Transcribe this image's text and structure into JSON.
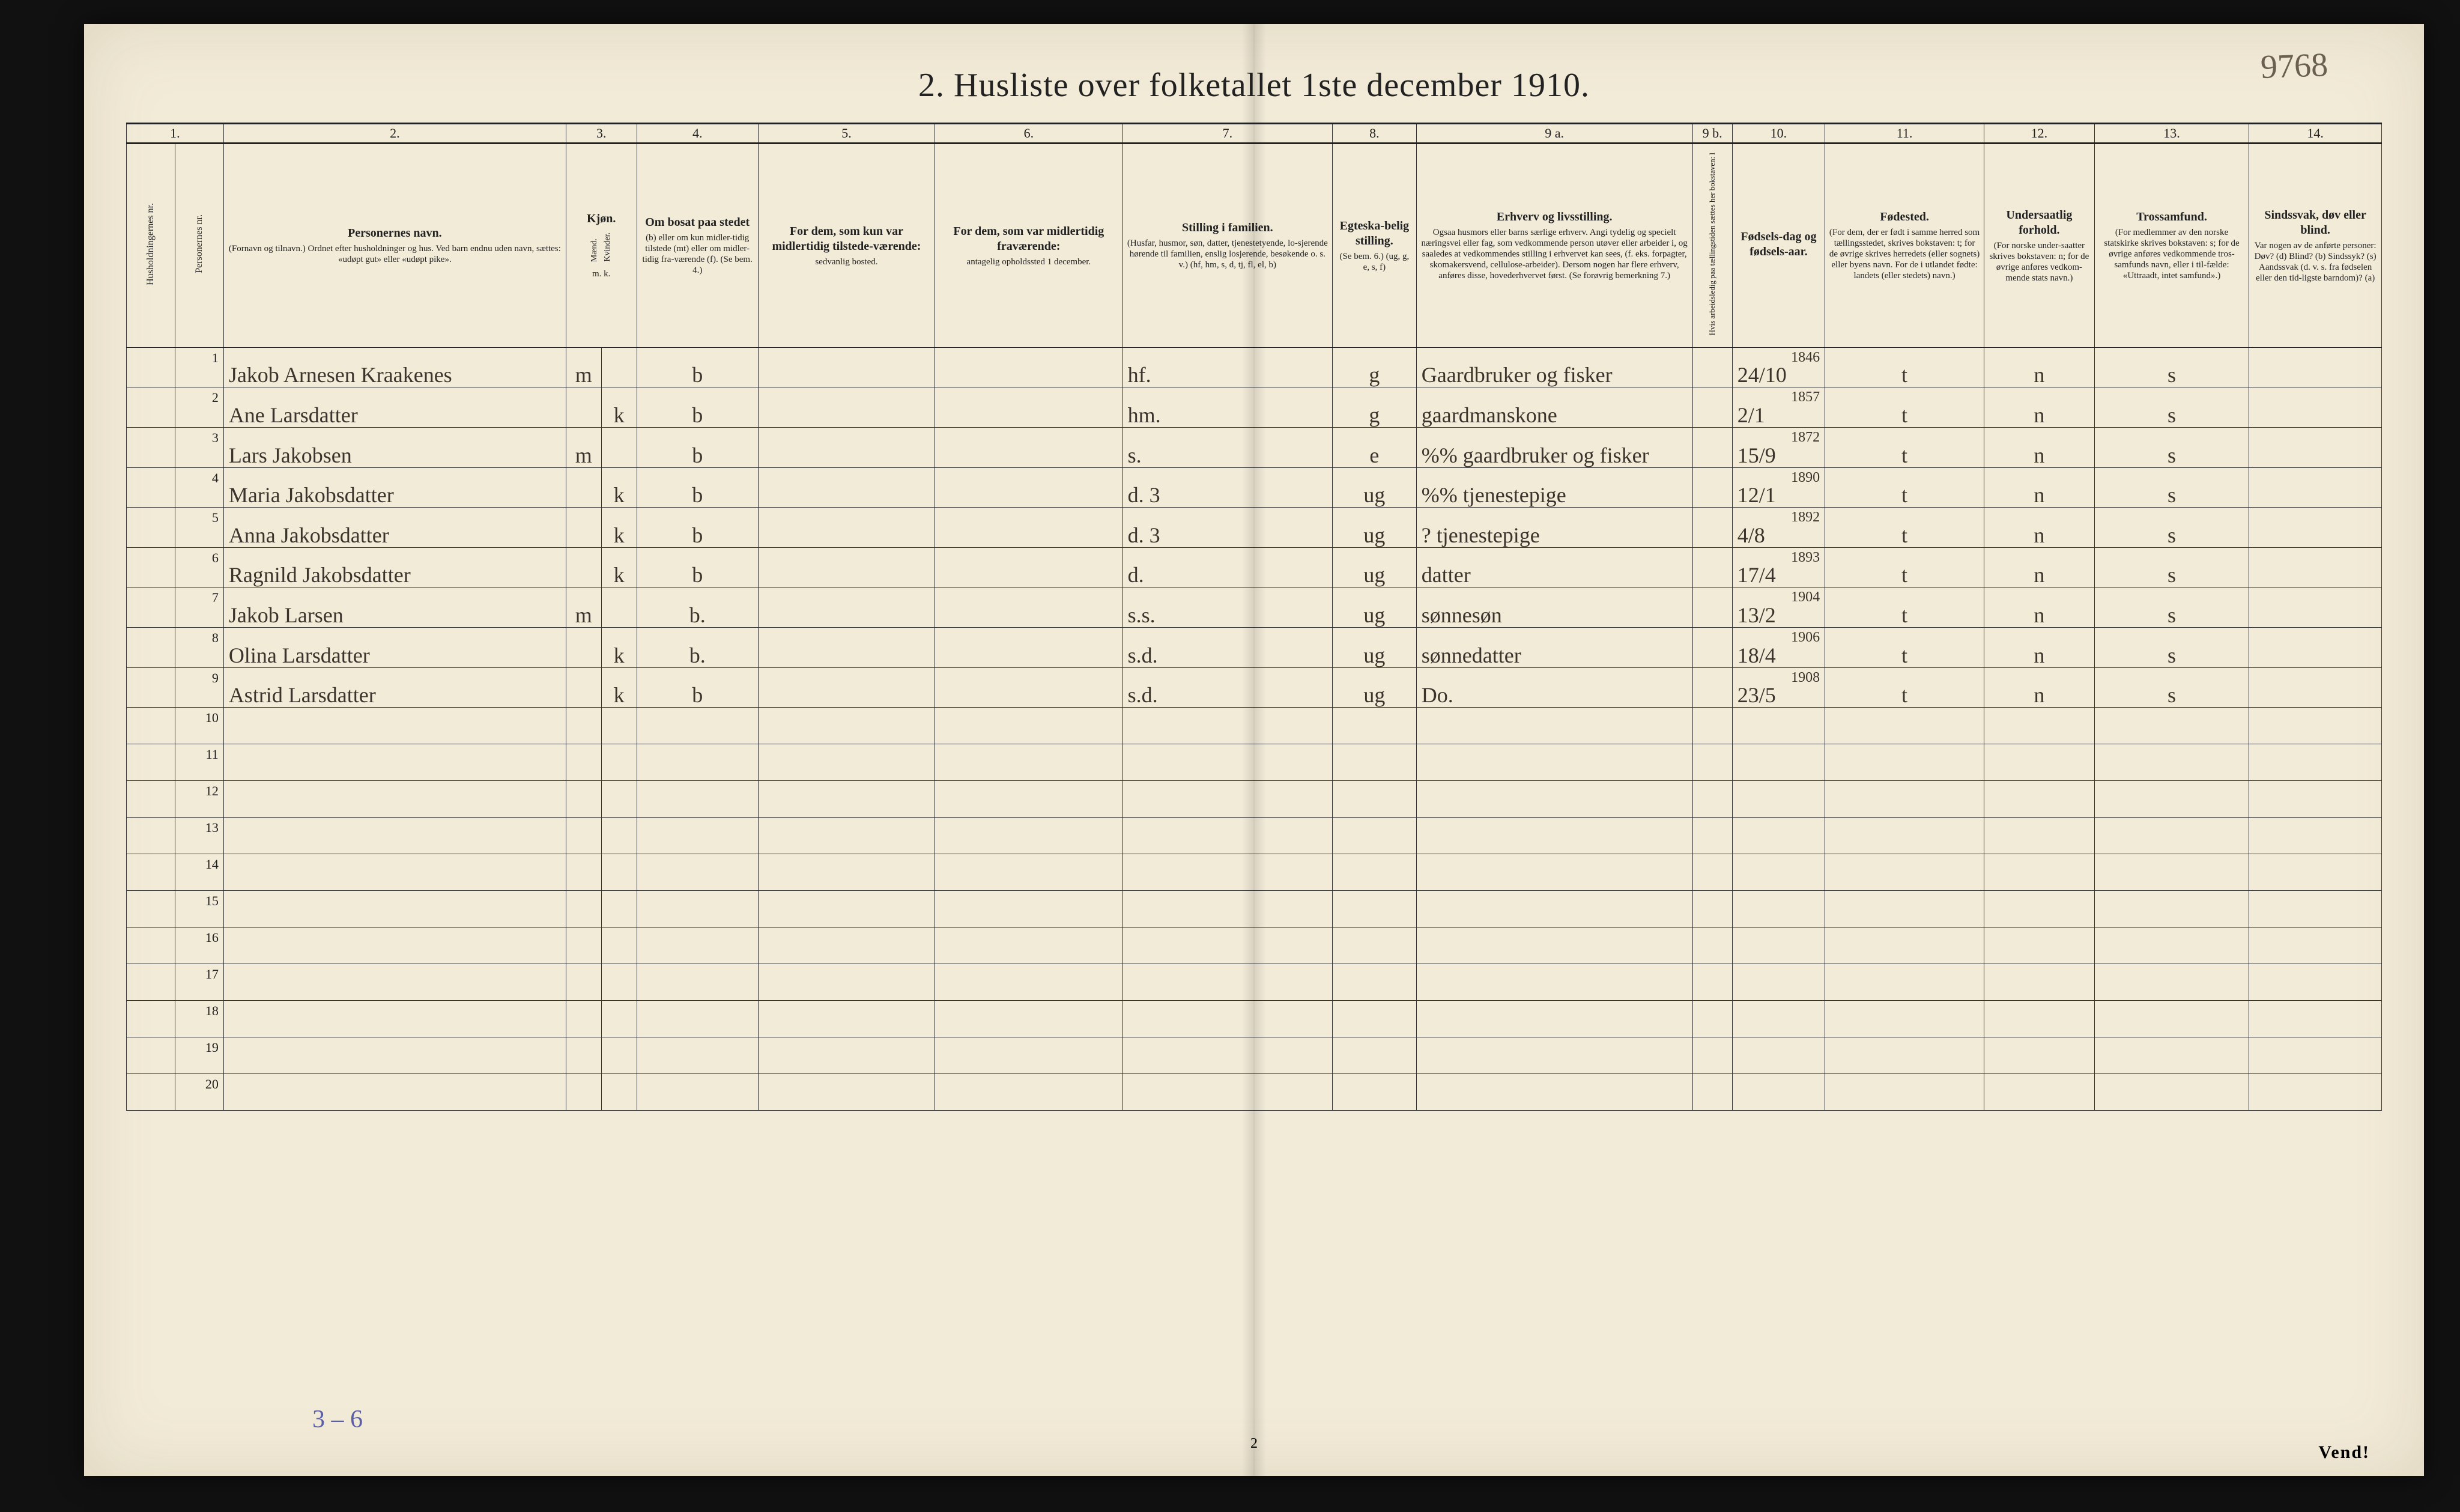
{
  "topright_handwritten": "9768",
  "title": "2.  Husliste over folketallet 1ste december 1910.",
  "page_number": "2",
  "footer_note": "Vend!",
  "pencil_bottom": "3 – 6",
  "columns": {
    "numbers": [
      "1.",
      "2.",
      "3.",
      "4.",
      "5.",
      "6.",
      "7.",
      "8.",
      "9 a.",
      "9 b.",
      "10.",
      "11.",
      "12.",
      "13.",
      "14."
    ],
    "h1": {
      "vlabel_a": "Husholdningernes nr.",
      "vlabel_b": "Personernes nr."
    },
    "h2": {
      "title": "Personernes navn.",
      "sub": "(Fornavn og tilnavn.)\nOrdnet efter husholdninger og hus.\nVed barn endnu uden navn, sættes: «udøpt gut» eller «udøpt pike»."
    },
    "h3": {
      "title": "Kjøn.",
      "sub_a": "Mænd.",
      "sub_b": "Kvinder.",
      "foot": "m.  k."
    },
    "h4": {
      "title": "Om bosat paa stedet",
      "sub": "(b) eller om kun midler-tidig tilstede (mt) eller om midler-tidig fra-værende (f). (Se bem. 4.)"
    },
    "h5": {
      "title": "For dem, som kun var midlertidig tilstede-værende:",
      "sub": "sedvanlig bosted."
    },
    "h6": {
      "title": "For dem, som var midlertidig fraværende:",
      "sub": "antagelig opholdssted 1 december."
    },
    "h7": {
      "title": "Stilling i familien.",
      "sub": "(Husfar, husmor, søn, datter, tjenestetyende, lo-sjerende hørende til familien, enslig losjerende, besøkende o. s. v.)\n(hf, hm, s, d, tj, fl, el, b)"
    },
    "h8": {
      "title": "Egteska-belig stilling.",
      "sub": "(Se bem. 6.)\n(ug, g, e, s, f)"
    },
    "h9a": {
      "title": "Erhverv og livsstilling.",
      "sub": "Ogsaa husmors eller barns særlige erhverv. Angi tydelig og specielt næringsvei eller fag, som vedkommende person utøver eller arbeider i, og saaledes at vedkommendes stilling i erhvervet kan sees, (f. eks. forpagter, skomakersvend, cellulose-arbeider). Dersom nogen har flere erhverv, anføres disse, hovederhvervet først. (Se forøvrig bemerkning 7.)"
    },
    "h9b": {
      "vlabel": "Hvis arbeidsledig paa tællingstiden sættes her bokstaven:  l"
    },
    "h10": {
      "title": "Fødsels-dag og fødsels-aar."
    },
    "h11": {
      "title": "Fødested.",
      "sub": "(For dem, der er født i samme herred som tællingsstedet, skrives bokstaven: t; for de øvrige skrives herredets (eller sognets) eller byens navn. For de i utlandet fødte: landets (eller stedets) navn.)"
    },
    "h12": {
      "title": "Undersaatlig forhold.",
      "sub": "(For norske under-saatter skrives bokstaven: n; for de øvrige anføres vedkom-mende stats navn.)"
    },
    "h13": {
      "title": "Trossamfund.",
      "sub": "(For medlemmer av den norske statskirke skrives bokstaven: s; for de øvrige anføres vedkommende tros-samfunds navn, eller i til-fælde: «Uttraadt, intet samfund».)"
    },
    "h14": {
      "title": "Sindssvak, døv eller blind.",
      "sub": "Var nogen av de anførte personer:\nDøv?       (d)\nBlind?      (b)\nSindssyk?  (s)\nAandssvak (d. v. s. fra fødselen eller den tid-ligste barndom)?  (a)"
    }
  },
  "rows": [
    {
      "n": "1",
      "name": "Jakob Arnesen Kraakenes",
      "m": "m",
      "k": "",
      "bosat": "b",
      "c5": "",
      "c6": "",
      "stilling": "hf.",
      "egte": "g",
      "erhverv": "Gaardbruker og fisker",
      "c9b": "",
      "year": "1846",
      "dob": "24/10",
      "fsted": "t",
      "under": "n",
      "tros": "s",
      "c14": ""
    },
    {
      "n": "2",
      "name": "Ane Larsdatter",
      "m": "",
      "k": "k",
      "bosat": "b",
      "c5": "",
      "c6": "",
      "stilling": "hm.",
      "egte": "g",
      "erhverv": "gaardmanskone",
      "c9b": "",
      "year": "1857",
      "dob": "2/1",
      "fsted": "t",
      "under": "n",
      "tros": "s",
      "c14": ""
    },
    {
      "n": "3",
      "name": "Lars Jakobsen",
      "m": "m",
      "k": "",
      "bosat": "b",
      "c5": "",
      "c6": "",
      "stilling": "s.",
      "egte": "e",
      "erhverv": "%% gaardbruker og fisker",
      "c9b": "",
      "year": "1872",
      "dob": "15/9",
      "fsted": "t",
      "under": "n",
      "tros": "s",
      "c14": ""
    },
    {
      "n": "4",
      "name": "Maria Jakobsdatter",
      "m": "",
      "k": "k",
      "bosat": "b",
      "c5": "",
      "c6": "",
      "stilling": "d.            3",
      "egte": "ug",
      "erhverv": "%% tjenestepige",
      "c9b": "",
      "year": "1890",
      "dob": "12/1",
      "fsted": "t",
      "under": "n",
      "tros": "s",
      "c14": ""
    },
    {
      "n": "5",
      "name": "Anna Jakobsdatter",
      "m": "",
      "k": "k",
      "bosat": "b",
      "c5": "",
      "c6": "",
      "stilling": "d.            3",
      "egte": "ug",
      "erhverv": "? tjenestepige",
      "c9b": "",
      "year": "1892",
      "dob": "4/8",
      "fsted": "t",
      "under": "n",
      "tros": "s",
      "c14": ""
    },
    {
      "n": "6",
      "name": "Ragnild Jakobsdatter",
      "m": "",
      "k": "k",
      "bosat": "b",
      "c5": "",
      "c6": "",
      "stilling": "d.",
      "egte": "ug",
      "erhverv": "datter",
      "c9b": "",
      "year": "1893",
      "dob": "17/4",
      "fsted": "t",
      "under": "n",
      "tros": "s",
      "c14": ""
    },
    {
      "n": "7",
      "name": "Jakob Larsen",
      "m": "m",
      "k": "",
      "bosat": "b.",
      "c5": "",
      "c6": "",
      "stilling": "s.s.",
      "egte": "ug",
      "erhverv": "sønnesøn",
      "c9b": "",
      "year": "1904",
      "dob": "13/2",
      "fsted": "t",
      "under": "n",
      "tros": "s",
      "c14": ""
    },
    {
      "n": "8",
      "name": "Olina Larsdatter",
      "m": "",
      "k": "k",
      "bosat": "b.",
      "c5": "",
      "c6": "",
      "stilling": "s.d.",
      "egte": "ug",
      "erhverv": "sønnedatter",
      "c9b": "",
      "year": "1906",
      "dob": "18/4",
      "fsted": "t",
      "under": "n",
      "tros": "s",
      "c14": ""
    },
    {
      "n": "9",
      "name": "Astrid Larsdatter",
      "m": "",
      "k": "k",
      "bosat": "b",
      "c5": "",
      "c6": "",
      "stilling": "s.d.",
      "egte": "ug",
      "erhverv": "Do.",
      "c9b": "",
      "year": "1908",
      "dob": "23/5",
      "fsted": "t",
      "under": "n",
      "tros": "s",
      "c14": ""
    }
  ],
  "empty_row_numbers": [
    "10",
    "11",
    "12",
    "13",
    "14",
    "15",
    "16",
    "17",
    "18",
    "19",
    "20"
  ],
  "colors": {
    "paper": "#f2ebd8",
    "ink": "#222222",
    "handwriting": "#3a342c",
    "pencil": "#5a5fa8",
    "page_bg": "#1a1a1a"
  }
}
